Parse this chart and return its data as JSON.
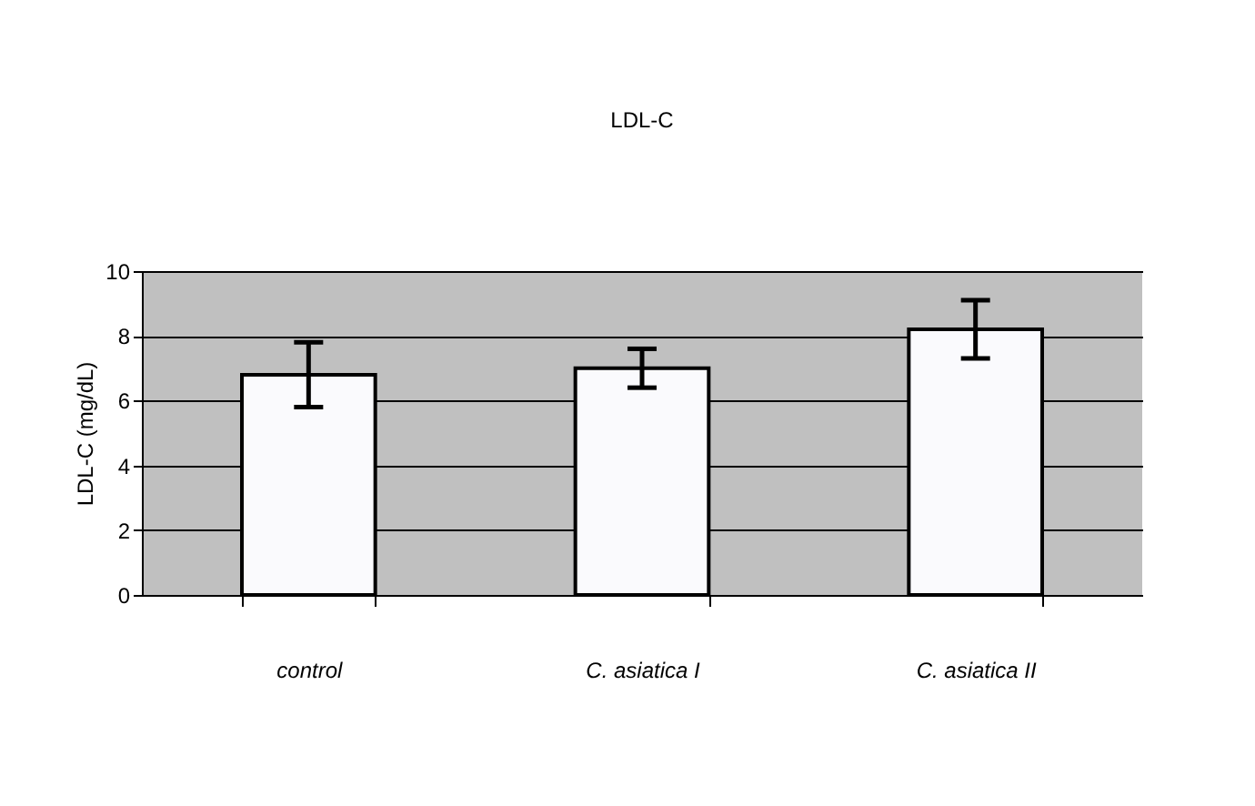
{
  "chart_data": {
    "type": "bar",
    "title": "LDL-C",
    "ylabel": "LDL-C (mg/dL)",
    "categories": [
      "control",
      "C. asiatica I",
      "C. asiatica II"
    ],
    "values": [
      6.8,
      7.0,
      8.2
    ],
    "errors": [
      1.0,
      0.6,
      0.9
    ],
    "color": "#fafafd",
    "ylim": [
      0,
      10
    ],
    "yticks": [
      0,
      2,
      4,
      6,
      8,
      10
    ],
    "grid": "y"
  }
}
